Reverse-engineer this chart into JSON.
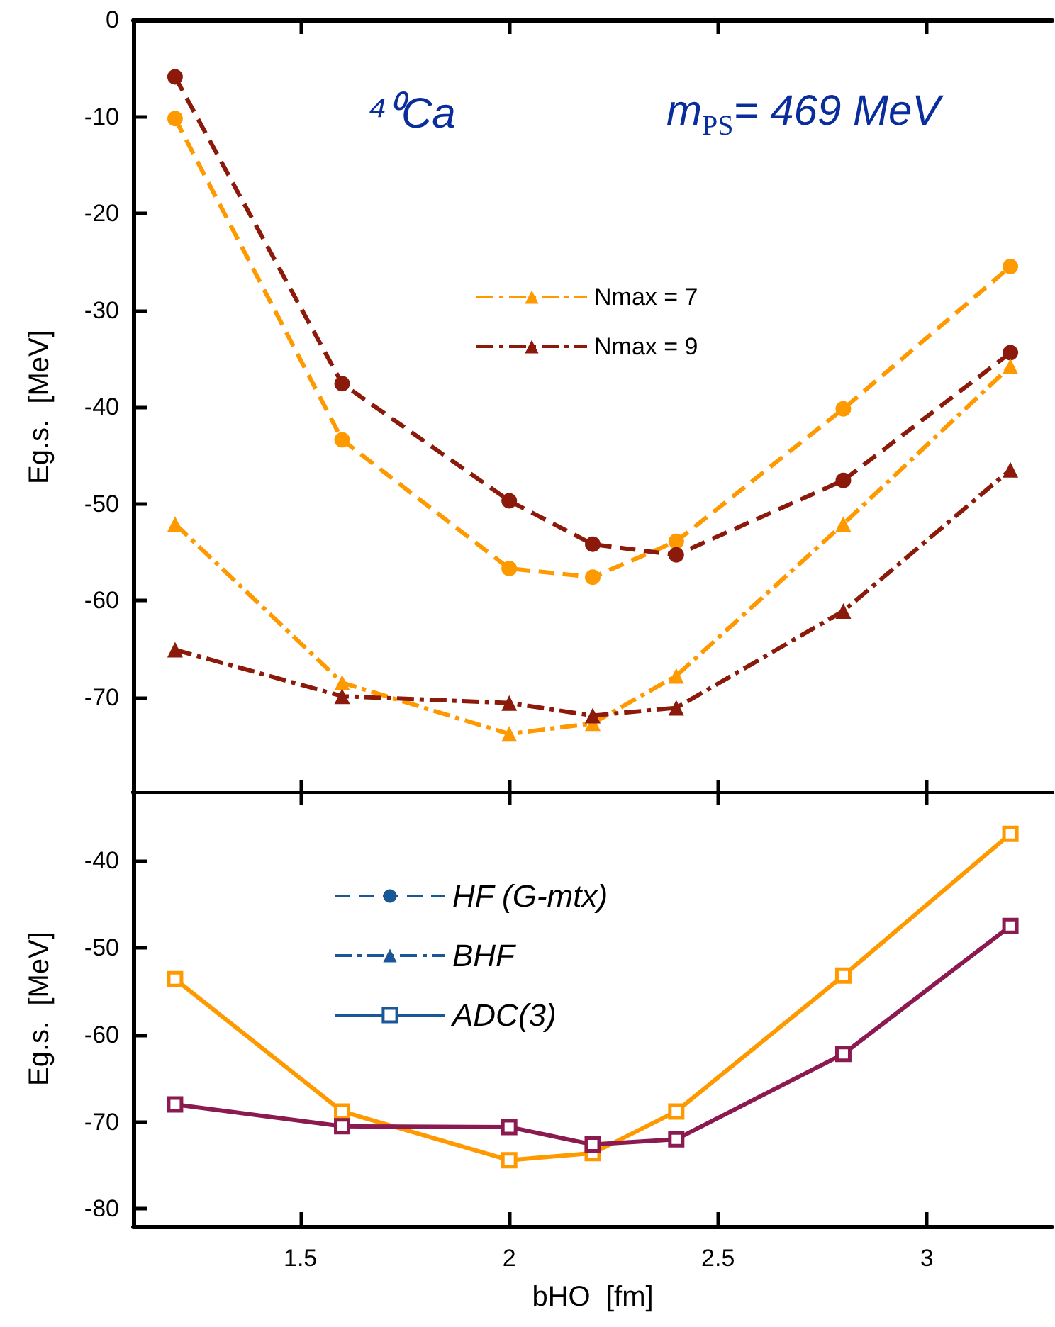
{
  "chart_data": [
    {
      "type": "line",
      "ylabel": "Eg.s.  [MeV]",
      "annotations": [
        "⁴⁰Ca",
        "m$_{PS}$= 469 MeV"
      ],
      "x": [
        1.2,
        1.6,
        2.0,
        2.2,
        2.4,
        2.8,
        3.2
      ],
      "series": [
        {
          "color": "#ff9900",
          "line_style": "dashed",
          "marker": "circle",
          "values": [
            -10.2,
            -43.4,
            -56.7,
            -57.6,
            -53.9,
            -40.2,
            -25.5
          ]
        },
        {
          "color": "#8b1a0a",
          "line_style": "dashed",
          "marker": "circle",
          "values": [
            -5.9,
            -37.6,
            -49.7,
            -54.2,
            -55.3,
            -47.6,
            -34.4
          ]
        },
        {
          "name": "Nmax = 7",
          "color": "#ff9900",
          "line_style": "dashdot",
          "marker": "triangle",
          "values": [
            -52.1,
            -68.5,
            -73.8,
            -72.7,
            -67.8,
            -52.1,
            -35.8
          ]
        },
        {
          "name": "Nmax = 9",
          "color": "#8b1a0a",
          "line_style": "dashdot",
          "marker": "triangle",
          "values": [
            -65.1,
            -69.9,
            -70.6,
            -71.9,
            -71.1,
            -61.1,
            -46.5
          ]
        }
      ],
      "xlim": [
        1.1,
        3.3
      ],
      "xticks": [
        1.5,
        2,
        2.5,
        3
      ],
      "ylim": [
        -80,
        0
      ],
      "yticks": [
        0,
        -10,
        -20,
        -30,
        -40,
        -50,
        -60,
        -70
      ],
      "tick_labels": "y",
      "legend": "top right",
      "grid": false
    },
    {
      "type": "line",
      "xlabel": "bHO  [fm]",
      "ylabel": "Eg.s.  [MeV]",
      "x": [
        1.2,
        1.6,
        2.0,
        2.2,
        2.4,
        2.8,
        3.2
      ],
      "series": [
        {
          "name": "HF (G-mtx)",
          "color": "#1a5796",
          "line_style": "dashed",
          "marker": "circle",
          "values": [
            null,
            null,
            null,
            null,
            null,
            null,
            null
          ]
        },
        {
          "name": "BHF",
          "color": "#1a5796",
          "line_style": "dashdot",
          "marker": "triangle",
          "values": [
            null,
            null,
            null,
            null,
            null,
            null,
            null
          ]
        },
        {
          "name": "ADC(3)",
          "color": "#1a5796",
          "line_style": "solid",
          "marker": "square",
          "values": [
            null,
            null,
            null,
            null,
            null,
            null,
            null
          ]
        },
        {
          "color": "#ff9900",
          "line_style": "solid",
          "marker": "square",
          "values": [
            -53.6,
            -68.8,
            -74.4,
            -73.6,
            -68.8,
            -53.2,
            -36.9
          ]
        },
        {
          "color": "#8b1a50",
          "line_style": "solid",
          "marker": "square",
          "values": [
            -68.0,
            -70.5,
            -70.6,
            -72.6,
            -72.0,
            -62.2,
            -47.5
          ]
        }
      ],
      "xlim": [
        1.1,
        3.3
      ],
      "xticks": [
        1.5,
        2,
        2.5,
        3
      ],
      "ylim": [
        -82,
        -32
      ],
      "yticks": [
        -40,
        -50,
        -60,
        -70,
        -80
      ],
      "legend": "top left",
      "grid": false
    }
  ]
}
